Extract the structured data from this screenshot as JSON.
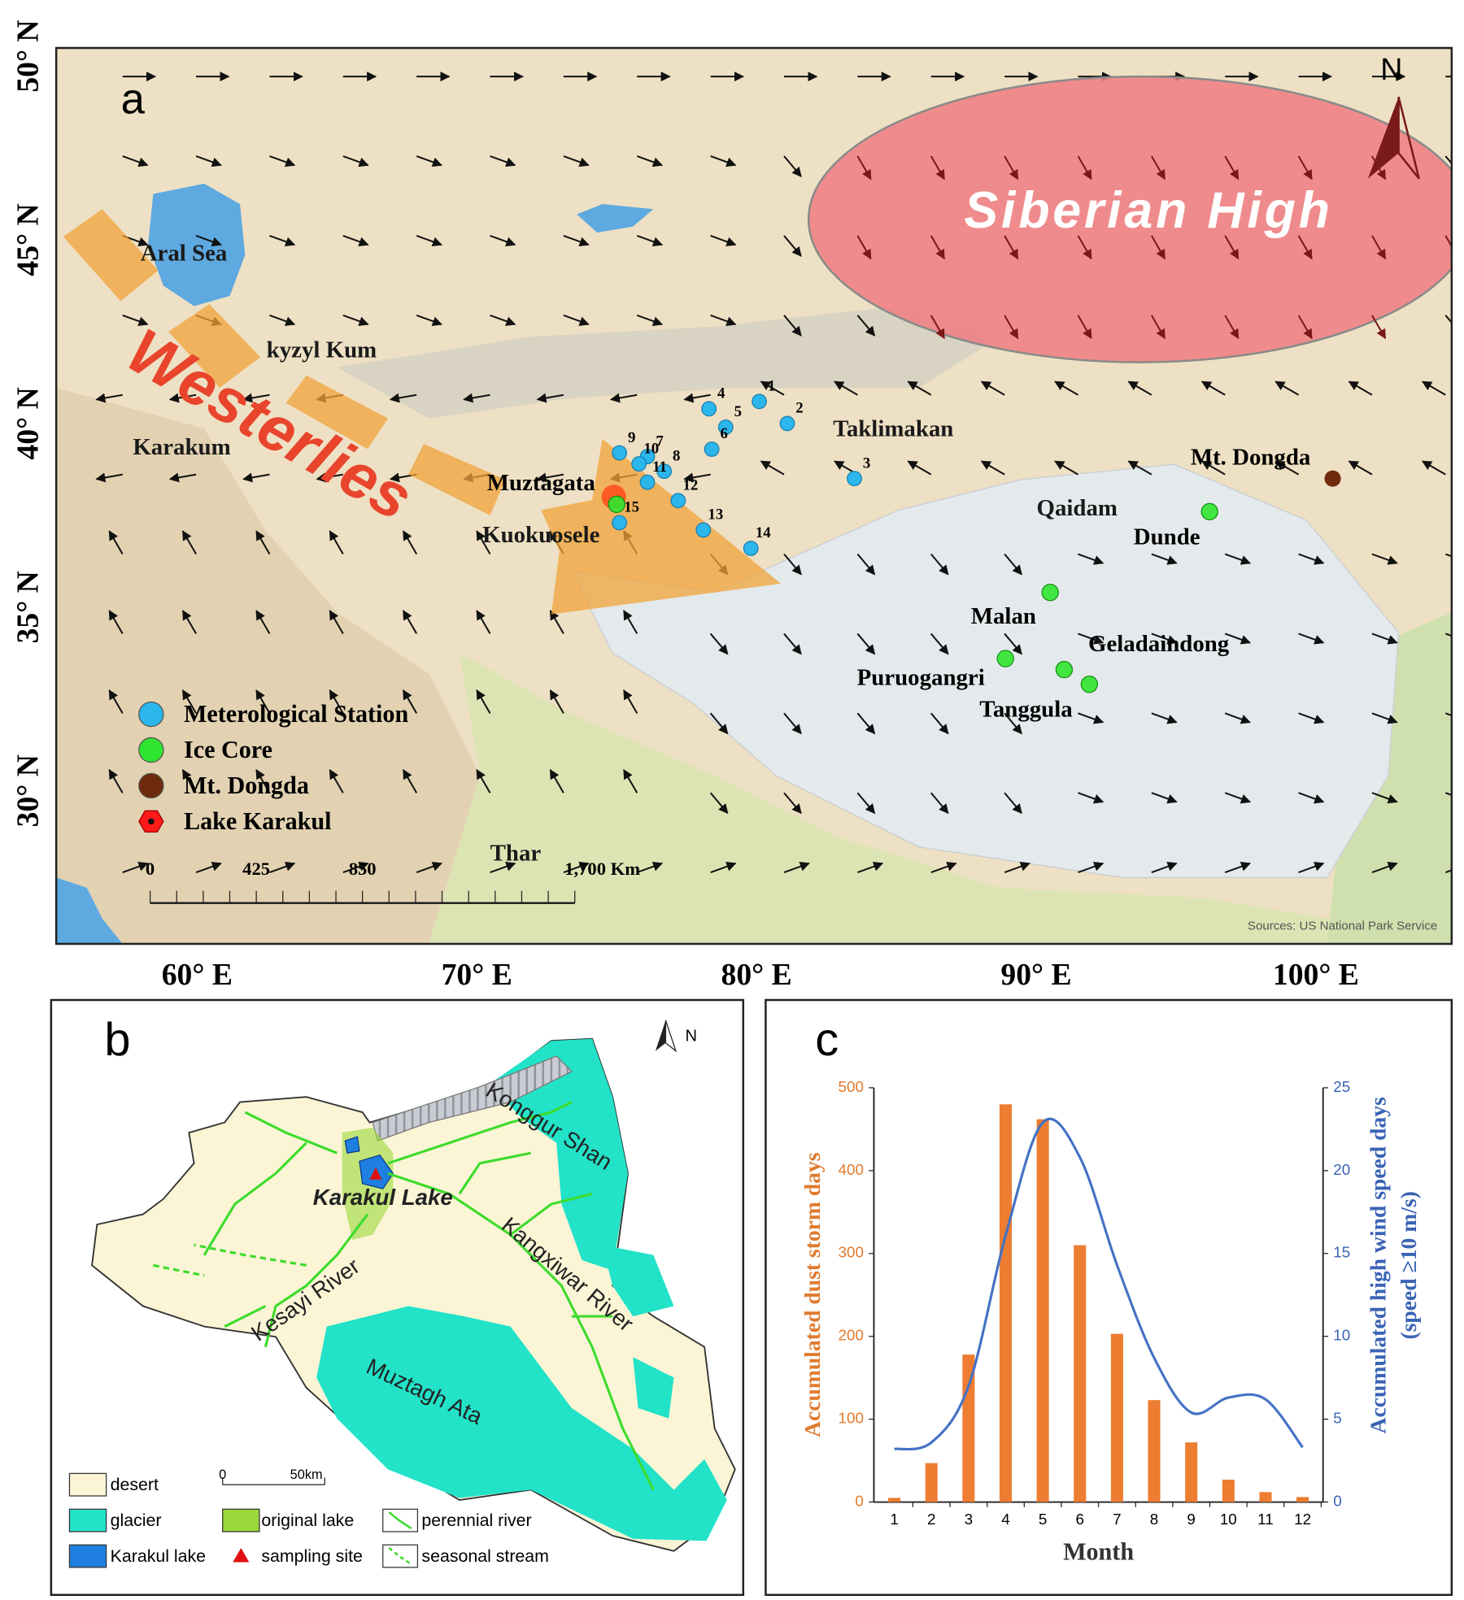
{
  "panel_a": {
    "label": "a",
    "north": "N",
    "high": "Siberian High",
    "westerlies": "Westerlies",
    "lat_ticks": [
      {
        "value": 50,
        "label": "50° N"
      },
      {
        "value": 45,
        "label": "45° N"
      },
      {
        "value": 40,
        "label": "40° N"
      },
      {
        "value": 35,
        "label": "35° N"
      },
      {
        "value": 30,
        "label": "30° N"
      }
    ],
    "lon_ticks": [
      {
        "value": 60,
        "label": "60° E"
      },
      {
        "value": 70,
        "label": "70° E"
      },
      {
        "value": 80,
        "label": "80° E"
      },
      {
        "value": 90,
        "label": "90° E"
      },
      {
        "value": 100,
        "label": "100° E"
      }
    ],
    "stations": [
      {
        "label": "1",
        "lon": 80.1,
        "lat": 40.6
      },
      {
        "label": "2",
        "lon": 81.1,
        "lat": 40.0
      },
      {
        "label": "3",
        "lon": 83.5,
        "lat": 38.5
      },
      {
        "label": "4",
        "lon": 78.3,
        "lat": 40.4
      },
      {
        "label": "5",
        "lon": 78.9,
        "lat": 39.9
      },
      {
        "label": "6",
        "lon": 78.4,
        "lat": 39.3
      },
      {
        "label": "7",
        "lon": 76.1,
        "lat": 39.1
      },
      {
        "label": "8",
        "lon": 76.7,
        "lat": 38.7
      },
      {
        "label": "9",
        "lon": 75.1,
        "lat": 39.2
      },
      {
        "label": "10",
        "lon": 75.8,
        "lat": 38.9
      },
      {
        "label": "11",
        "lon": 76.1,
        "lat": 38.4
      },
      {
        "label": "12",
        "lon": 77.2,
        "lat": 37.9
      },
      {
        "label": "13",
        "lon": 78.1,
        "lat": 37.1
      },
      {
        "label": "14",
        "lon": 79.8,
        "lat": 36.6
      },
      {
        "label": "15",
        "lon": 75.1,
        "lat": 37.3
      }
    ],
    "ice_cores": [
      {
        "name": "Muztagata",
        "lon": 75.0,
        "lat": 37.8
      },
      {
        "name": "Dunde",
        "lon": 96.2,
        "lat": 37.6
      },
      {
        "name": "Malan",
        "lon": 90.5,
        "lat": 35.4
      },
      {
        "name": "Puruogangri",
        "lon": 88.9,
        "lat": 33.6
      },
      {
        "name": "Geladaindong",
        "lon": 91.0,
        "lat": 33.3
      },
      {
        "name": "Tanggula",
        "lon": 91.9,
        "lat": 32.9
      }
    ],
    "peak": {
      "name": "Mt. Dongda",
      "lon": 100.6,
      "lat": 38.5
    },
    "lake": {
      "lon": 74.9,
      "lat": 38.0
    },
    "regions": [
      "Aral Sea",
      "kyzyl Kum",
      "Karakum",
      "Taklimakan",
      "Qaidam",
      "Thar",
      "Kuokuosele"
    ],
    "legend": [
      {
        "label": "Meterological Station",
        "color": "#2bb6ec"
      },
      {
        "label": "Ice Core",
        "color": "#2fe52f"
      },
      {
        "label": "Mt. Dongda",
        "color": "#6e2a0c"
      },
      {
        "label": "Lake Karakul",
        "color": "#ff1a1a"
      }
    ],
    "scale_bar": [
      "0",
      "425",
      "850",
      "1,700 Km"
    ],
    "credit": "Sources: US National Park Service"
  },
  "panel_b": {
    "label": "b",
    "north": "N",
    "places": [
      "Konggur Shan",
      "Karakul Lake",
      "Kesayi River",
      "Kangxiwar River",
      "Muztagh Ata"
    ],
    "scale_bar": [
      "0",
      "50km"
    ],
    "legend": [
      "desert",
      "glacier",
      "Karakul lake",
      "original lake",
      "sampling site",
      "perennial river",
      "seasonal stream"
    ]
  },
  "chart_data": {
    "type": "bar",
    "label": "c",
    "categories": [
      "1",
      "2",
      "3",
      "4",
      "5",
      "6",
      "7",
      "8",
      "9",
      "10",
      "11",
      "12"
    ],
    "series": [
      {
        "color": "#ed7d31",
        "values": [
          5,
          47,
          178,
          480,
          462,
          310,
          203,
          123,
          72,
          27,
          12,
          6
        ]
      },
      {
        "type": "line",
        "axis": "y2",
        "color": "#4472c4",
        "values": [
          3.2,
          3.6,
          7.0,
          16.1,
          22.9,
          20.8,
          14.3,
          8.7,
          5.4,
          6.3,
          6.2,
          3.3
        ]
      }
    ],
    "ylim": [
      0,
      500
    ],
    "yticks": [
      0,
      100,
      200,
      300,
      400,
      500
    ],
    "y2lim": [
      0,
      25
    ],
    "y2ticks": [
      0,
      5,
      10,
      15,
      20,
      25
    ],
    "xlabel": "Month",
    "ylabel": "Accumulated dust storm days",
    "y2label": [
      "Accumulated high wind speed days",
      "(speed ≥10 m/s)"
    ]
  }
}
